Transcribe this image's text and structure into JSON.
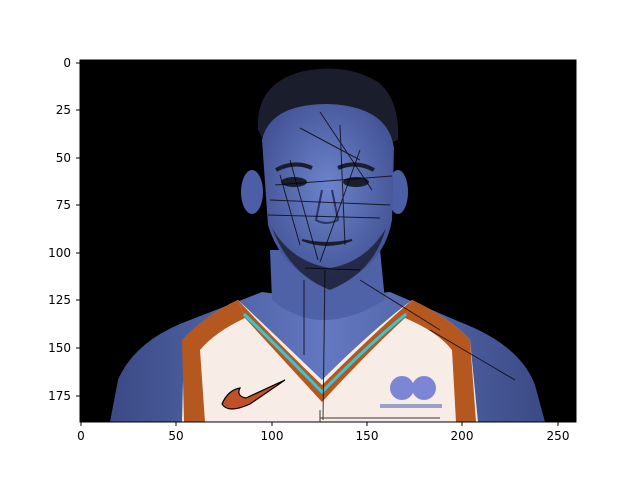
{
  "figure": {
    "x_axis": {
      "range": [
        0,
        260
      ],
      "ticks": [
        0,
        50,
        100,
        150,
        200,
        250
      ]
    },
    "y_axis": {
      "range": [
        0,
        190
      ],
      "inverted": true,
      "ticks": [
        0,
        25,
        50,
        75,
        100,
        125,
        150,
        175
      ]
    },
    "image": {
      "depicts": "portrait-photo",
      "background_color": "#000000",
      "skin_tint": "#5a6fb8",
      "jersey_color": "#f7ece6",
      "trim_color": "#b4581f",
      "accent_color": "#34c7d8"
    }
  }
}
